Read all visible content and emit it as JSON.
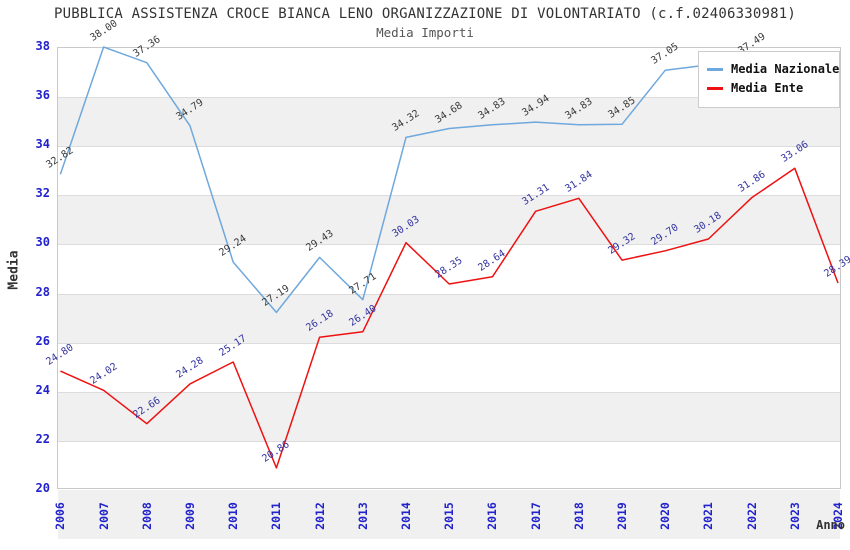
{
  "title": "PUBBLICA ASSISTENZA CROCE BIANCA LENO ORGANIZZAZIONE DI VOLONTARIATO (c.f.02406330981)",
  "subtitle": "Media Importi",
  "axes": {
    "y_label": "Media",
    "x_label": "Anno"
  },
  "chart_data": {
    "type": "line",
    "title": "Media Importi",
    "categories": [
      "2006",
      "2007",
      "2008",
      "2009",
      "2010",
      "2011",
      "2012",
      "2013",
      "2014",
      "2015",
      "2016",
      "2017",
      "2018",
      "2019",
      "2020",
      "2021",
      "2022",
      "2023",
      "2024"
    ],
    "series": [
      {
        "name": "Media Nazionale",
        "color": "#6fa8dc",
        "label_color": "#3a3a3a",
        "values": [
          32.82,
          38.0,
          37.36,
          34.79,
          29.24,
          27.19,
          29.43,
          27.71,
          34.32,
          34.68,
          34.83,
          34.94,
          34.83,
          34.85,
          37.05,
          null,
          37.49,
          null,
          null
        ]
      },
      {
        "name": "Media Ente",
        "color": "#ee1111",
        "label_color": "#3434a0",
        "values": [
          24.8,
          24.02,
          22.66,
          24.28,
          25.17,
          20.86,
          26.18,
          26.4,
          30.03,
          28.35,
          28.64,
          31.31,
          31.84,
          29.32,
          29.7,
          30.18,
          31.86,
          33.06,
          28.39
        ]
      }
    ],
    "xlabel": "Anno",
    "ylabel": "Media",
    "ylim": [
      20,
      38
    ],
    "y_ticks": [
      38,
      36,
      34,
      32,
      30,
      28,
      26,
      24,
      22,
      20
    ],
    "grid": "horizontal-only",
    "band_fill": "#f0f0f0",
    "tick_label_color": "#2222cc",
    "legend_position": "top-right"
  }
}
